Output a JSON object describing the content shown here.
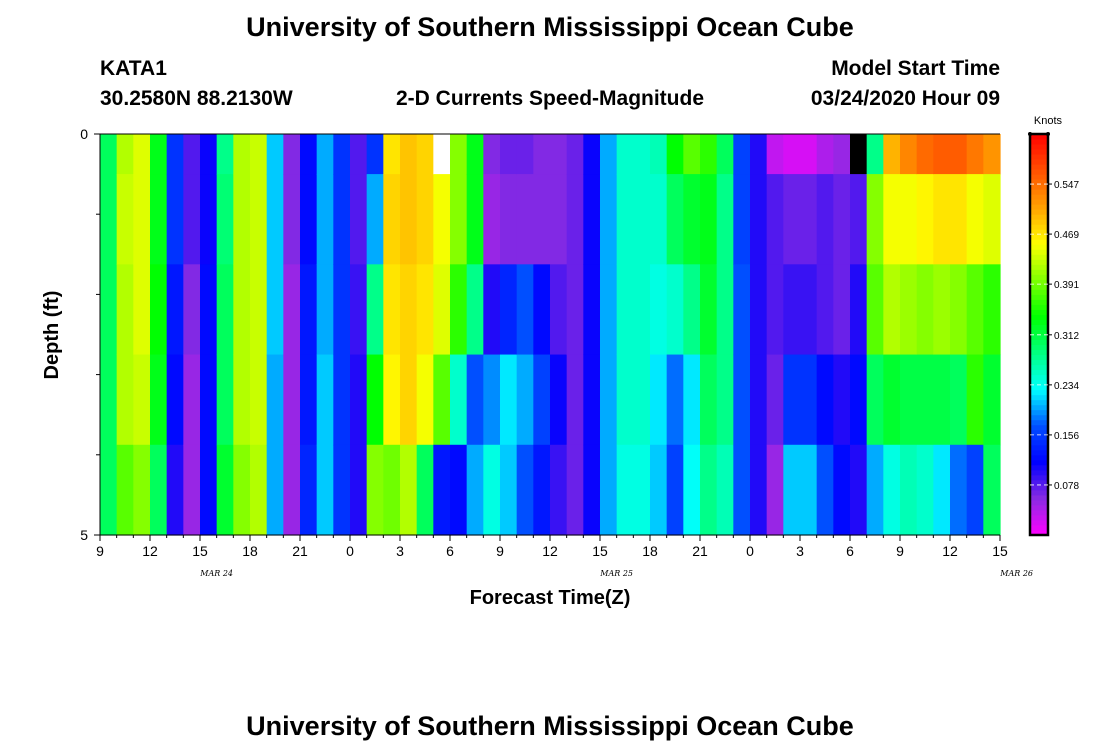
{
  "page": {
    "title_top": "University of Southern Mississippi Ocean Cube",
    "title_bottom": "University of Southern Mississippi Ocean Cube",
    "station_id": "KATA1",
    "station_coords": "30.2580N 88.2130W",
    "subtitle": "2-D Currents Speed-Magnitude",
    "model_start_label": "Model Start Time",
    "model_start_value": "03/24/2020 Hour 09"
  },
  "chart_data": {
    "type": "heatmap",
    "title": "2-D Currents Speed-Magnitude",
    "xlabel": "Forecast Time(Z)",
    "ylabel": "Depth (ft)",
    "x_tick_labels": [
      "9",
      "12",
      "15",
      "18",
      "21",
      "0",
      "3",
      "6",
      "9",
      "12",
      "15",
      "18",
      "21",
      "0",
      "3",
      "6",
      "9",
      "12",
      "15"
    ],
    "y_tick_labels": [
      "0",
      "5"
    ],
    "y_range": [
      0,
      5
    ],
    "y_minor_ticks": [
      1,
      2,
      3,
      4
    ],
    "date_labels": [
      {
        "text": "MAR 24",
        "hour_index": 7
      },
      {
        "text": "MAR 25",
        "hour_index": 31
      },
      {
        "text": "MAR 26",
        "hour_index": 55
      }
    ],
    "hours": 54,
    "depth_layers": 5,
    "colorbar": {
      "unit": "Knots",
      "min": 0.0,
      "max": 0.625,
      "tick_values": [
        0.078,
        0.156,
        0.234,
        0.312,
        0.391,
        0.469,
        0.547
      ],
      "tick_labels": [
        "0.078",
        "0.156",
        "0.234",
        "0.312",
        "0.391",
        "0.469",
        "0.547"
      ],
      "colors": [
        "#ff00ff",
        "#8a2be2",
        "#0000ff",
        "#0050ff",
        "#00ffff",
        "#00ff80",
        "#00ff00",
        "#80ff00",
        "#ffff00",
        "#ffa000",
        "#ff5000",
        "#ff0000"
      ]
    },
    "surface_band_depth": 0.5,
    "profiles_knots": [
      [
        0.3,
        0.3,
        0.3,
        0.3,
        0.3
      ],
      [
        0.42,
        0.43,
        0.42,
        0.42,
        0.38
      ],
      [
        0.44,
        0.44,
        0.44,
        0.43,
        0.4
      ],
      [
        0.33,
        0.33,
        0.34,
        0.33,
        0.3
      ],
      [
        0.15,
        0.15,
        0.13,
        0.12,
        0.1
      ],
      [
        0.08,
        0.08,
        0.06,
        0.05,
        0.05
      ],
      [
        0.11,
        0.11,
        0.12,
        0.12,
        0.12
      ],
      [
        0.28,
        0.29,
        0.3,
        0.3,
        0.32
      ],
      [
        0.42,
        0.42,
        0.42,
        0.42,
        0.4
      ],
      [
        0.43,
        0.43,
        0.43,
        0.43,
        0.42
      ],
      [
        0.21,
        0.21,
        0.21,
        0.2,
        0.2
      ],
      [
        0.06,
        0.06,
        0.05,
        0.05,
        0.05
      ],
      [
        0.12,
        0.12,
        0.13,
        0.13,
        0.14
      ],
      [
        0.2,
        0.2,
        0.2,
        0.21,
        0.21
      ],
      [
        0.15,
        0.15,
        0.15,
        0.15,
        0.15
      ],
      [
        0.08,
        0.08,
        0.09,
        0.1,
        0.1
      ],
      [
        0.15,
        0.2,
        0.28,
        0.34,
        0.4
      ],
      [
        0.47,
        0.48,
        0.47,
        0.46,
        0.39
      ],
      [
        0.49,
        0.49,
        0.48,
        0.48,
        0.42
      ],
      [
        0.48,
        0.48,
        0.47,
        0.45,
        0.3
      ],
      [
        0.45,
        0.45,
        0.44,
        0.38,
        0.13
      ],
      [
        0.4,
        0.4,
        0.36,
        0.25,
        0.12
      ],
      [
        0.33,
        0.33,
        0.28,
        0.17,
        0.2
      ],
      [
        0.06,
        0.05,
        0.1,
        0.19,
        0.24
      ],
      [
        0.07,
        0.06,
        0.14,
        0.22,
        0.21
      ],
      [
        0.07,
        0.06,
        0.17,
        0.2,
        0.17
      ],
      [
        0.06,
        0.06,
        0.12,
        0.16,
        0.13
      ],
      [
        0.06,
        0.06,
        0.08,
        0.11,
        0.09
      ],
      [
        0.07,
        0.07,
        0.07,
        0.07,
        0.07
      ],
      [
        0.11,
        0.11,
        0.11,
        0.11,
        0.11
      ],
      [
        0.2,
        0.2,
        0.2,
        0.2,
        0.2
      ],
      [
        0.25,
        0.25,
        0.25,
        0.25,
        0.24
      ],
      [
        0.25,
        0.25,
        0.25,
        0.25,
        0.24
      ],
      [
        0.26,
        0.25,
        0.24,
        0.22,
        0.21
      ],
      [
        0.34,
        0.3,
        0.25,
        0.18,
        0.16
      ],
      [
        0.38,
        0.32,
        0.28,
        0.22,
        0.23
      ],
      [
        0.36,
        0.33,
        0.32,
        0.3,
        0.28
      ],
      [
        0.3,
        0.28,
        0.28,
        0.28,
        0.26
      ],
      [
        0.16,
        0.16,
        0.17,
        0.17,
        0.17
      ],
      [
        0.1,
        0.1,
        0.1,
        0.1,
        0.1
      ],
      [
        0.03,
        0.08,
        0.08,
        0.07,
        0.05
      ],
      [
        0.02,
        0.07,
        0.09,
        0.15,
        0.21
      ],
      [
        0.02,
        0.07,
        0.09,
        0.15,
        0.21
      ],
      [
        0.04,
        0.08,
        0.08,
        0.12,
        0.17
      ],
      [
        0.05,
        0.07,
        0.07,
        0.1,
        0.12
      ],
      [
        0.07,
        0.08,
        0.1,
        0.12,
        0.1
      ],
      [
        0.28,
        0.4,
        0.38,
        0.3,
        0.2
      ],
      [
        0.5,
        0.45,
        0.42,
        0.32,
        0.24
      ],
      [
        0.53,
        0.45,
        0.41,
        0.31,
        0.26
      ],
      [
        0.55,
        0.46,
        0.4,
        0.31,
        0.25
      ],
      [
        0.56,
        0.47,
        0.41,
        0.31,
        0.22
      ],
      [
        0.56,
        0.47,
        0.4,
        0.3,
        0.18
      ],
      [
        0.54,
        0.45,
        0.38,
        0.36,
        0.16
      ],
      [
        0.52,
        0.44,
        0.36,
        0.32,
        0.3
      ]
    ],
    "missing_cells": [
      {
        "hour_index": 20,
        "layer": 0,
        "color": "#ffffff"
      },
      {
        "hour_index": 45,
        "layer": 0,
        "color": "#000000"
      }
    ]
  }
}
